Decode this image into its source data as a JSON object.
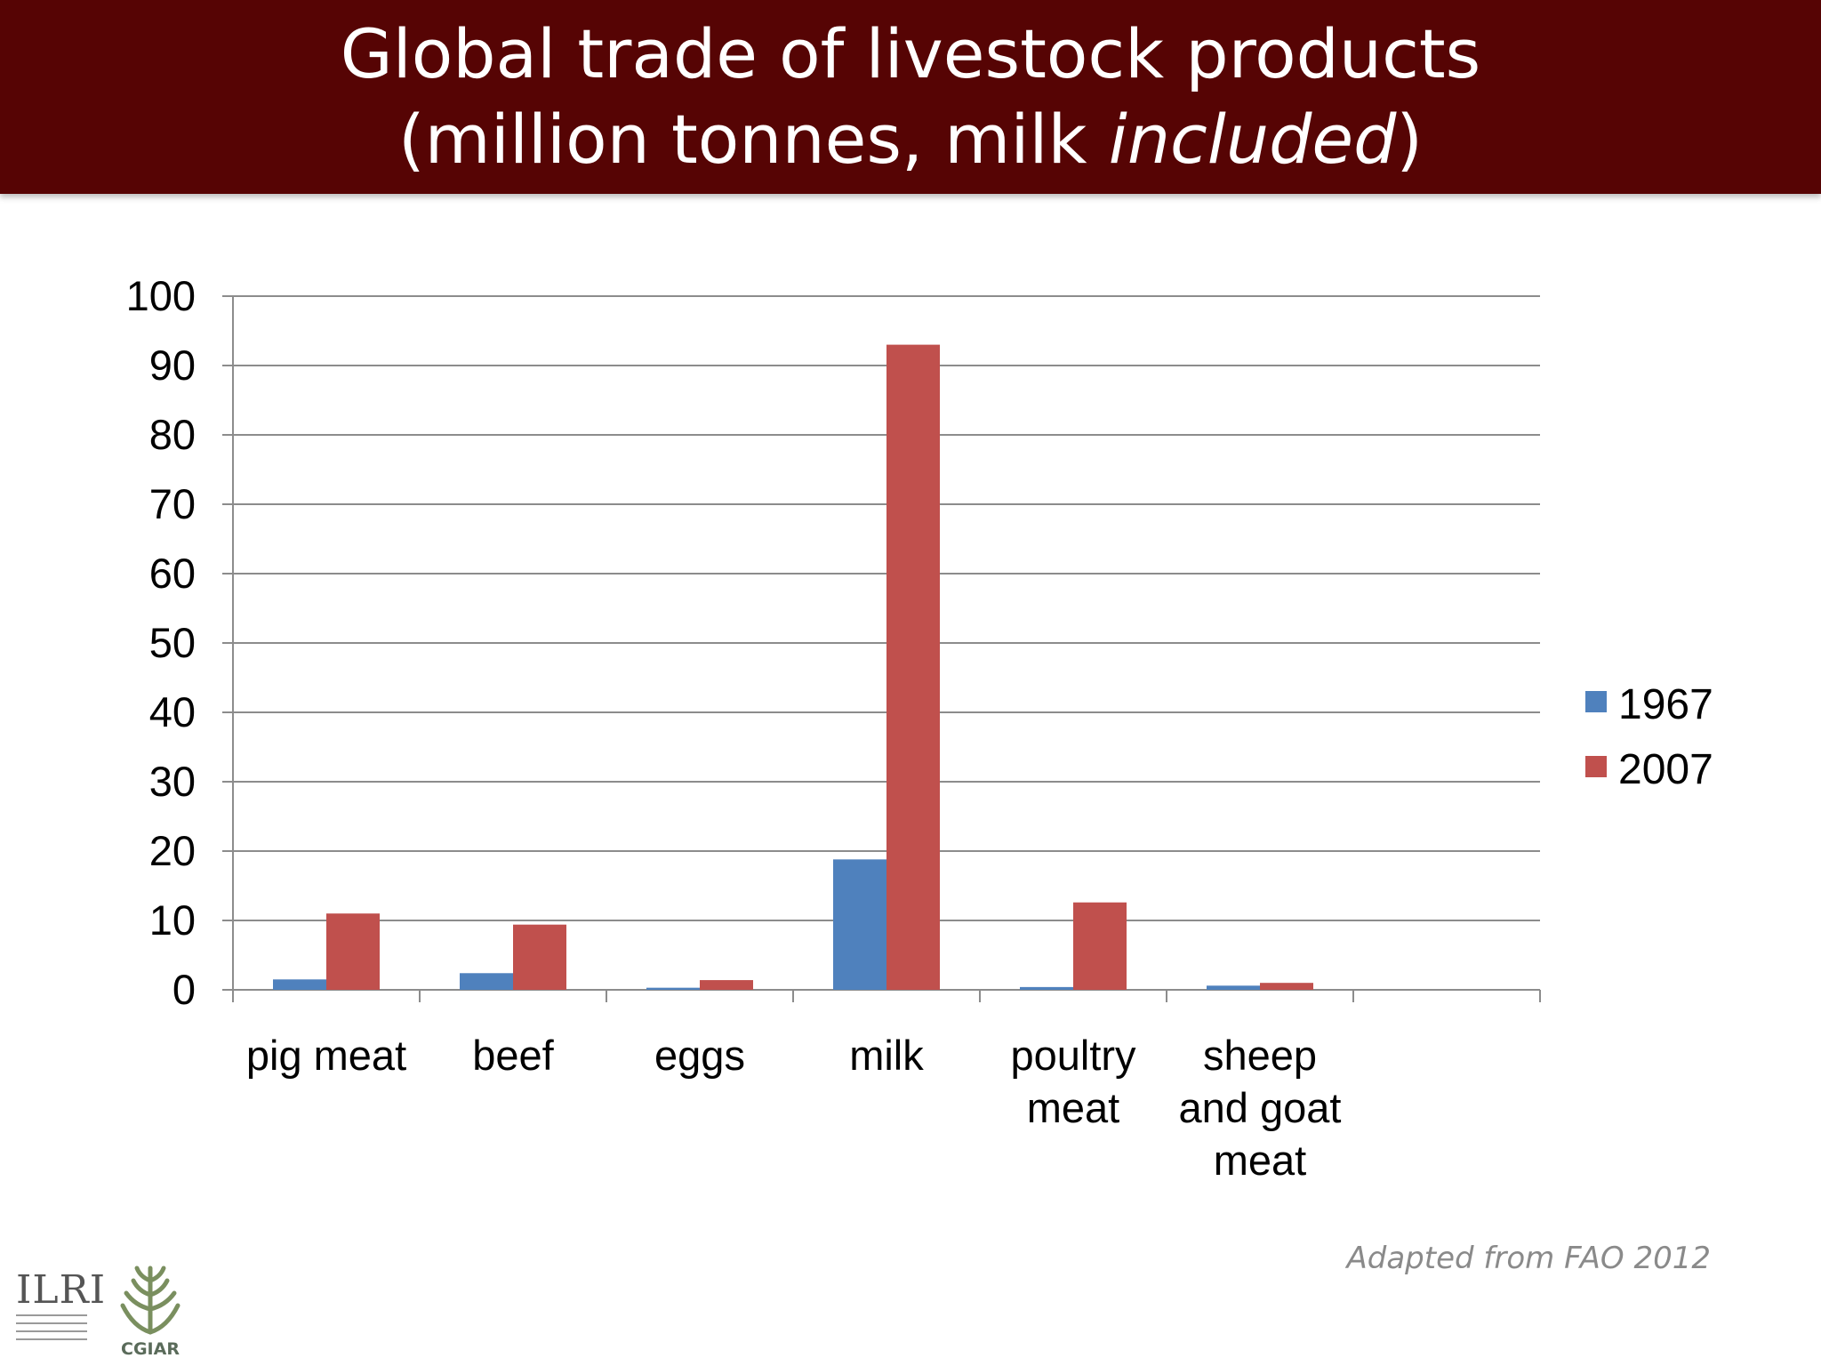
{
  "header": {
    "title_line1": "Global trade of livestock products",
    "title_line2_prefix": "(million tonnes, milk ",
    "title_line2_italic": "included",
    "title_line2_suffix": ")"
  },
  "chart_data": {
    "type": "bar",
    "title": "Global trade of livestock products (million tonnes, milk included)",
    "categories": [
      [
        "pig meat"
      ],
      [
        "beef"
      ],
      [
        "eggs"
      ],
      [
        "milk"
      ],
      [
        "poultry",
        "meat"
      ],
      [
        "sheep",
        "and goat",
        "meat"
      ]
    ],
    "category_count_on_axis": 7,
    "series": [
      {
        "name": "1967",
        "color": "#4F81BD",
        "values": [
          1.5,
          2.4,
          0.3,
          18.8,
          0.4,
          0.6
        ]
      },
      {
        "name": "2007",
        "color": "#C0504D",
        "values": [
          11.0,
          9.4,
          1.4,
          93.0,
          12.6,
          1.0
        ]
      }
    ],
    "ylim": [
      0,
      100
    ],
    "yticks": [
      0,
      10,
      20,
      30,
      40,
      50,
      60,
      70,
      80,
      90,
      100
    ],
    "grid": true,
    "legend_position": "right"
  },
  "footer": {
    "source_text": "Adapted from FAO 2012",
    "logos": [
      {
        "icon": "ilri-logo",
        "text": "ILRI"
      },
      {
        "icon": "cgiar-wheat-logo",
        "text": "CGIAR"
      }
    ]
  }
}
